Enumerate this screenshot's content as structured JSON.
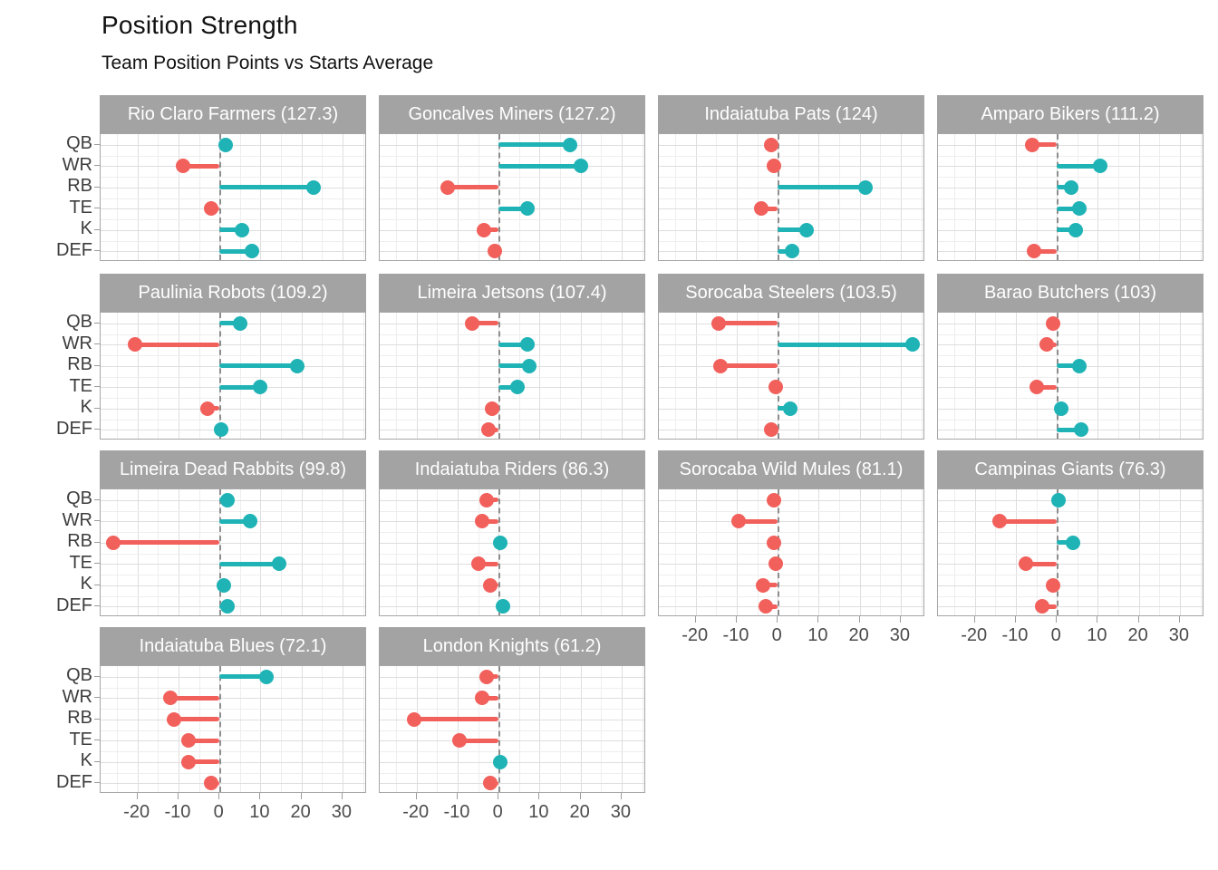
{
  "title": "Position Strength",
  "subtitle": "Team Position Points vs Starts Average",
  "chart_data": {
    "type": "bar",
    "style": "horizontal-lollipop-small-multiples",
    "categories": [
      "QB",
      "WR",
      "RB",
      "TE",
      "K",
      "DEF"
    ],
    "x_ticks": [
      "-20",
      "-10",
      "0",
      "10",
      "20",
      "30"
    ],
    "x_tick_values": [
      -20,
      -10,
      0,
      10,
      20,
      30
    ],
    "xlim": [
      -29,
      36
    ],
    "grid": "on",
    "zero_reference_line": "dashed",
    "positive_color": "#1fb3b6",
    "negative_color": "#f2605c",
    "facets": [
      {
        "team": "Rio Claro Farmers",
        "points": 127.3,
        "label": "Rio Claro Farmers (127.3)",
        "values": [
          1.5,
          -9,
          23,
          -2,
          5.5,
          8
        ]
      },
      {
        "team": "Goncalves Miners",
        "points": 127.2,
        "label": "Goncalves Miners (127.2)",
        "values": [
          17.5,
          20,
          -12.5,
          7,
          -3.5,
          -1
        ]
      },
      {
        "team": "Indaiatuba Pats",
        "points": 124,
        "label": "Indaiatuba Pats (124)",
        "values": [
          -1.5,
          -1,
          21.5,
          -4,
          7,
          3.5
        ]
      },
      {
        "team": "Amparo Bikers",
        "points": 111.2,
        "label": "Amparo Bikers (111.2)",
        "values": [
          -6,
          10.5,
          3.5,
          5.5,
          4.5,
          -5.5
        ]
      },
      {
        "team": "Paulinia Robots",
        "points": 109.2,
        "label": "Paulinia Robots (109.2)",
        "values": [
          5,
          -20.5,
          19,
          10,
          -3,
          0.5
        ]
      },
      {
        "team": "Limeira Jetsons",
        "points": 107.4,
        "label": "Limeira Jetsons (107.4)",
        "values": [
          -6.5,
          7,
          7.5,
          4.5,
          -1.5,
          -2.5
        ]
      },
      {
        "team": "Sorocaba Steelers",
        "points": 103.5,
        "label": "Sorocaba Steelers (103.5)",
        "values": [
          -14.5,
          33,
          -14,
          -0.5,
          3,
          -1.5
        ]
      },
      {
        "team": "Barao Butchers",
        "points": 103,
        "label": "Barao Butchers (103)",
        "values": [
          -1,
          -2.5,
          5.5,
          -5,
          1,
          6
        ]
      },
      {
        "team": "Limeira Dead Rabbits",
        "points": 99.8,
        "label": "Limeira Dead Rabbits (99.8)",
        "values": [
          2,
          7.5,
          -26,
          14.5,
          1,
          2
        ]
      },
      {
        "team": "Indaiatuba Riders",
        "points": 86.3,
        "label": "Indaiatuba Riders (86.3)",
        "values": [
          -3,
          -4,
          0.5,
          -5,
          -2,
          1
        ]
      },
      {
        "team": "Sorocaba Wild Mules",
        "points": 81.1,
        "label": "Sorocaba Wild Mules (81.1)",
        "values": [
          -1,
          -9.5,
          -1,
          -0.5,
          -3.5,
          -3
        ]
      },
      {
        "team": "Campinas Giants",
        "points": 76.3,
        "label": "Campinas Giants (76.3)",
        "values": [
          0.5,
          -14,
          4,
          -7.5,
          -1,
          -3.5
        ]
      },
      {
        "team": "Indaiatuba Blues",
        "points": 72.1,
        "label": "Indaiatuba Blues (72.1)",
        "values": [
          11.5,
          -12,
          -11,
          -7.5,
          -7.5,
          -2
        ]
      },
      {
        "team": "London Knights",
        "points": 61.2,
        "label": "London Knights (61.2)",
        "values": [
          -3,
          -4,
          -20.5,
          -9.5,
          0.5,
          -2
        ]
      }
    ]
  }
}
